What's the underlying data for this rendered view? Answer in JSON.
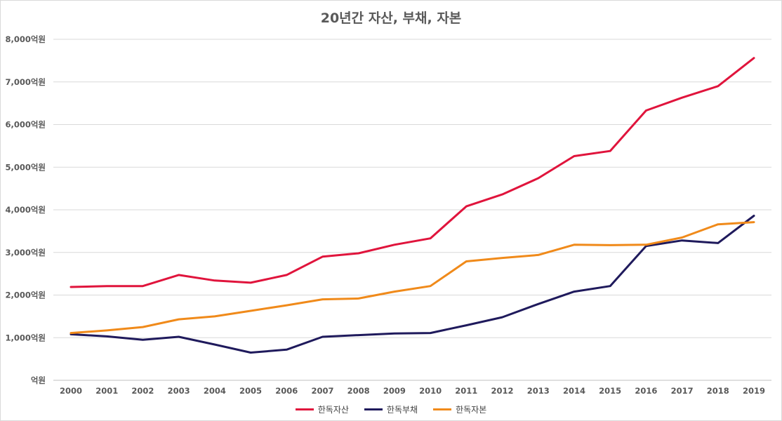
{
  "chart_data": {
    "type": "line",
    "title": "20년간 자산, 부채, 자본",
    "x": [
      "2000",
      "2001",
      "2002",
      "2003",
      "2004",
      "2005",
      "2006",
      "2007",
      "2008",
      "2009",
      "2010",
      "2011",
      "2012",
      "2013",
      "2014",
      "2015",
      "2016",
      "2017",
      "2018",
      "2019"
    ],
    "y_ticks": [
      {
        "value": 0,
        "label": "억원"
      },
      {
        "value": 1000,
        "label": "1,000억원"
      },
      {
        "value": 2000,
        "label": "2,000억원"
      },
      {
        "value": 3000,
        "label": "3,000억원"
      },
      {
        "value": 4000,
        "label": "4,000억원"
      },
      {
        "value": 5000,
        "label": "5,000억원"
      },
      {
        "value": 6000,
        "label": "6,000억원"
      },
      {
        "value": 7000,
        "label": "7,000억원"
      },
      {
        "value": 8000,
        "label": "8,000억원"
      }
    ],
    "ylim": [
      0,
      8000
    ],
    "grid": true,
    "legend_position": "bottom",
    "series": [
      {
        "name": "한독자산",
        "color": "#e0143c",
        "values": [
          2190,
          2210,
          2210,
          2470,
          2340,
          2290,
          2470,
          2900,
          2980,
          3180,
          3330,
          4080,
          4360,
          4740,
          5260,
          5380,
          6330,
          6630,
          6900,
          7560
        ]
      },
      {
        "name": "한독부채",
        "color": "#1f1a5c",
        "values": [
          1080,
          1030,
          950,
          1020,
          840,
          650,
          720,
          1020,
          1060,
          1100,
          1110,
          1290,
          1480,
          1790,
          2080,
          2210,
          3150,
          3280,
          3220,
          3860
        ]
      },
      {
        "name": "한독자본",
        "color": "#f08a1a",
        "values": [
          1110,
          1170,
          1250,
          1430,
          1500,
          1630,
          1760,
          1900,
          1920,
          2080,
          2210,
          2790,
          2870,
          2940,
          3180,
          3170,
          3180,
          3350,
          3660,
          3710
        ]
      }
    ]
  }
}
